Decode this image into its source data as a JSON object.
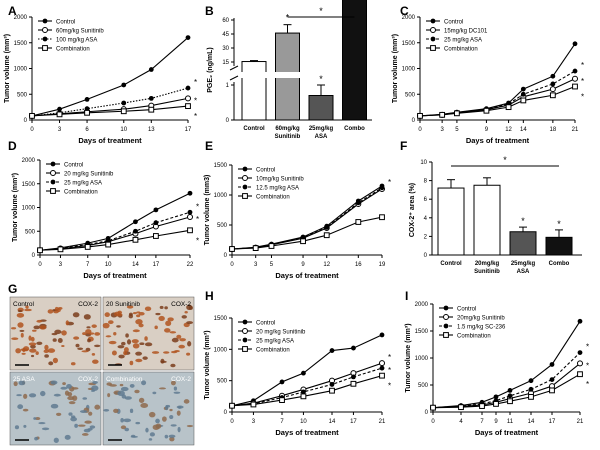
{
  "chart_data": [
    {
      "panel": "A",
      "type": "line",
      "xlabel": "Days of treatment",
      "ylabel": "Tumor volume (mm³)",
      "xlim": [
        0,
        17
      ],
      "ylim": [
        0,
        2000
      ],
      "xticks": [
        "0",
        "3",
        "6",
        "10",
        "13",
        "17"
      ],
      "yticks": [
        "0",
        "500",
        "1000",
        "1500",
        "2000"
      ],
      "x": [
        0,
        3,
        6,
        10,
        13,
        17
      ],
      "series": [
        {
          "name": "Control",
          "marker": "filled-circle",
          "dash": "solid",
          "values": [
            80,
            210,
            400,
            680,
            980,
            1600
          ]
        },
        {
          "name": "60mg/kg Sunitinib",
          "marker": "open-circle",
          "dash": "solid",
          "values": [
            80,
            120,
            160,
            210,
            280,
            420
          ]
        },
        {
          "name": "100 mg/kg ASA",
          "marker": "filled-circle",
          "dash": "dotted",
          "values": [
            80,
            140,
            220,
            330,
            420,
            620
          ]
        },
        {
          "name": "Combination",
          "marker": "open-square",
          "dash": "solid",
          "values": [
            80,
            110,
            140,
            170,
            200,
            270
          ]
        }
      ],
      "annotations": [
        "*",
        "*",
        "*"
      ]
    },
    {
      "panel": "B",
      "type": "bar",
      "ylabel": "PGE₂ (ng/mL)",
      "categories": [
        "Control",
        "60mg/kg Sunitinib",
        "25mg/kg ASA",
        "Combo"
      ],
      "values": [
        15.5,
        46,
        0.7,
        14.5
      ],
      "errors": [
        1,
        9,
        0.3,
        0.5
      ],
      "colors": [
        "#ffffff",
        "#999999",
        "#555555",
        "#111111"
      ],
      "yticks_low": [
        "0",
        "1"
      ],
      "yticks_high": [
        "15",
        "30",
        "45",
        "60"
      ],
      "axis_break": true,
      "annotations": [
        "*",
        "*",
        "*"
      ]
    },
    {
      "panel": "C",
      "type": "line",
      "xlabel": "Days of treatment",
      "ylabel": "Tumor volume (mm³)",
      "xlim": [
        0,
        21
      ],
      "ylim": [
        0,
        2000
      ],
      "xticks": [
        "0",
        "3",
        "5",
        "9",
        "12",
        "14",
        "18",
        "21"
      ],
      "yticks": [
        "0",
        "500",
        "1000",
        "1500",
        "2000"
      ],
      "x": [
        0,
        3,
        5,
        9,
        12,
        14,
        18,
        21
      ],
      "series": [
        {
          "name": "Control",
          "marker": "filled-circle",
          "dash": "solid",
          "values": [
            80,
            110,
            150,
            220,
            330,
            600,
            850,
            1480
          ]
        },
        {
          "name": "15mg/kg DC101",
          "marker": "open-circle",
          "dash": "solid",
          "values": [
            80,
            100,
            140,
            200,
            290,
            450,
            600,
            800
          ]
        },
        {
          "name": "25 mg/kg ASA",
          "marker": "filled-circle",
          "dash": "dashed",
          "values": [
            80,
            105,
            145,
            210,
            310,
            500,
            700,
            950
          ]
        },
        {
          "name": "Combination",
          "marker": "open-square",
          "dash": "solid",
          "values": [
            80,
            100,
            130,
            180,
            250,
            380,
            480,
            650
          ]
        }
      ],
      "annotations": [
        "*",
        "*",
        "*"
      ]
    },
    {
      "panel": "D",
      "type": "line",
      "xlabel": "Days of treatment",
      "ylabel": "Tumor volume (mm³)",
      "xlim": [
        0,
        22
      ],
      "ylim": [
        0,
        2000
      ],
      "xticks": [
        "0",
        "3",
        "7",
        "10",
        "14",
        "17",
        "22"
      ],
      "yticks": [
        "0",
        "500",
        "1000",
        "1500",
        "2000"
      ],
      "x": [
        0,
        3,
        7,
        10,
        14,
        17,
        22
      ],
      "series": [
        {
          "name": "Control",
          "marker": "filled-circle",
          "dash": "solid",
          "values": [
            100,
            150,
            250,
            350,
            700,
            950,
            1300
          ]
        },
        {
          "name": "20 mg/kg Sunitinib",
          "marker": "open-circle",
          "dash": "solid",
          "values": [
            100,
            130,
            200,
            280,
            450,
            600,
            800
          ]
        },
        {
          "name": "25 mg/kg ASA",
          "marker": "filled-circle",
          "dash": "dashed",
          "values": [
            100,
            140,
            220,
            300,
            500,
            680,
            900
          ]
        },
        {
          "name": "Combination",
          "marker": "open-square",
          "dash": "solid",
          "values": [
            100,
            120,
            170,
            220,
            320,
            400,
            520
          ]
        }
      ],
      "annotations": [
        "*",
        "*",
        "*"
      ]
    },
    {
      "panel": "E",
      "type": "line",
      "xlabel": "Days of treatment",
      "ylabel": "Tumor volume (mm3)",
      "xlim": [
        0,
        19
      ],
      "ylim": [
        0,
        1500
      ],
      "xticks": [
        "0",
        "3",
        "5",
        "9",
        "12",
        "16",
        "19"
      ],
      "yticks": [
        "0",
        "500",
        "1000",
        "1500"
      ],
      "x": [
        0,
        3,
        5,
        9,
        12,
        16,
        19
      ],
      "series": [
        {
          "name": "Control",
          "marker": "filled-circle",
          "dash": "solid",
          "values": [
            100,
            130,
            180,
            300,
            480,
            900,
            1150
          ]
        },
        {
          "name": "10mg/kg Sunitinib",
          "marker": "open-circle",
          "dash": "solid",
          "values": [
            100,
            120,
            170,
            280,
            450,
            850,
            1100
          ]
        },
        {
          "name": "12.5 mg/kg ASA",
          "marker": "filled-circle",
          "dash": "dashed",
          "values": [
            100,
            125,
            175,
            290,
            460,
            870,
            1120
          ]
        },
        {
          "name": "Combination",
          "marker": "open-square",
          "dash": "solid",
          "values": [
            100,
            115,
            150,
            230,
            330,
            550,
            630
          ]
        }
      ],
      "annotations": [
        "*"
      ]
    },
    {
      "panel": "F",
      "type": "bar",
      "ylabel": "COX-2⁺ area (%)",
      "categories": [
        "Control",
        "20mg/kg Sunitinib",
        "25mg/kg ASA",
        "Combo"
      ],
      "values": [
        7.2,
        7.5,
        2.5,
        1.9
      ],
      "errors": [
        0.9,
        0.8,
        0.5,
        0.8
      ],
      "colors": [
        "#ffffff",
        "#ffffff",
        "#555555",
        "#111111"
      ],
      "ylim": [
        0,
        10
      ],
      "yticks": [
        "0",
        "2",
        "4",
        "6",
        "8",
        "10"
      ],
      "annotations": [
        "*",
        "*",
        "*"
      ]
    },
    {
      "panel": "H",
      "type": "line",
      "xlabel": "Days of treatment",
      "ylabel": "Tumor volume (mm³)",
      "xlim": [
        0,
        21
      ],
      "ylim": [
        0,
        1500
      ],
      "xticks": [
        "0",
        "3",
        "7",
        "10",
        "14",
        "17",
        "21"
      ],
      "yticks": [
        "0",
        "500",
        "1000",
        "1500"
      ],
      "x": [
        0,
        3,
        7,
        10,
        14,
        17,
        21
      ],
      "series": [
        {
          "name": "Control",
          "marker": "filled-circle",
          "dash": "solid",
          "values": [
            100,
            180,
            480,
            620,
            980,
            1020,
            1230
          ]
        },
        {
          "name": "20 mg/kg Sunitinib",
          "marker": "open-circle",
          "dash": "solid",
          "values": [
            100,
            140,
            260,
            360,
            500,
            620,
            780
          ]
        },
        {
          "name": "25 mg/kg ASA",
          "marker": "filled-circle",
          "dash": "dashed",
          "values": [
            100,
            130,
            230,
            320,
            440,
            560,
            700
          ]
        },
        {
          "name": "Combination",
          "marker": "open-square",
          "dash": "solid",
          "values": [
            100,
            120,
            190,
            250,
            340,
            450,
            580
          ]
        }
      ],
      "annotations": [
        "*",
        "*",
        "*"
      ]
    },
    {
      "panel": "I",
      "type": "line",
      "xlabel": "Days of treatment",
      "ylabel": "Tumor volume (mm³)",
      "xlim": [
        0,
        21
      ],
      "ylim": [
        0,
        2000
      ],
      "xticks": [
        "0",
        "4",
        "7",
        "9",
        "11",
        "14",
        "17",
        "21"
      ],
      "yticks": [
        "0",
        "500",
        "1000",
        "1500",
        "2000"
      ],
      "x": [
        0,
        4,
        7,
        9,
        11,
        14,
        17,
        21
      ],
      "series": [
        {
          "name": "Control",
          "marker": "filled-circle",
          "dash": "solid",
          "values": [
            80,
            120,
            180,
            280,
            400,
            580,
            880,
            1680
          ]
        },
        {
          "name": "20mg/kg Sunitinib",
          "marker": "open-circle",
          "dash": "solid",
          "values": [
            80,
            100,
            130,
            180,
            250,
            350,
            480,
            900
          ]
        },
        {
          "name": "1.5 mg/kg SC-236",
          "marker": "filled-circle",
          "dash": "dashed",
          "values": [
            80,
            110,
            150,
            210,
            300,
            420,
            600,
            1100
          ]
        },
        {
          "name": "Combination",
          "marker": "open-square",
          "dash": "solid",
          "values": [
            80,
            90,
            110,
            150,
            200,
            280,
            400,
            700
          ]
        }
      ],
      "annotations": [
        "*",
        "*",
        "*"
      ]
    }
  ],
  "panel_labels": [
    "A",
    "B",
    "C",
    "D",
    "E",
    "F",
    "G",
    "H",
    "I"
  ],
  "micrographs": {
    "stain_label": "COX-2",
    "tiles": [
      {
        "treatment": "Control",
        "stain": "COX-2",
        "tone": "brown"
      },
      {
        "treatment": "20 Sunitinib",
        "stain": "COX-2",
        "tone": "brown"
      },
      {
        "treatment": "25 ASA",
        "stain": "COX-2",
        "tone": "blue"
      },
      {
        "treatment": "Combination",
        "stain": "COX-2",
        "tone": "blue"
      }
    ]
  }
}
